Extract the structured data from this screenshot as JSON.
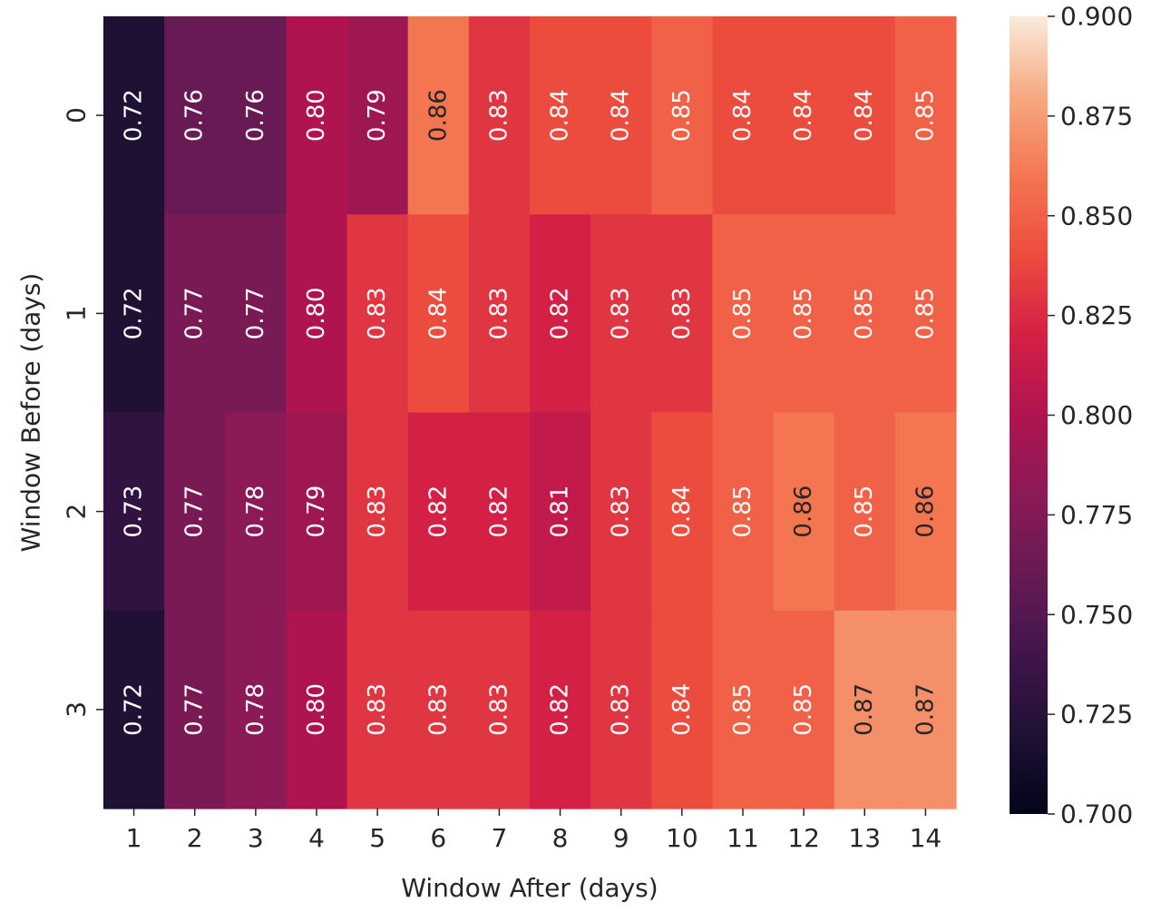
{
  "chart_data": {
    "type": "heatmap",
    "title": "",
    "xlabel": "Window After (days)",
    "ylabel": "Window Before (days)",
    "x_categories": [
      "1",
      "2",
      "3",
      "4",
      "5",
      "6",
      "7",
      "8",
      "9",
      "10",
      "11",
      "12",
      "13",
      "14"
    ],
    "y_categories": [
      "0",
      "1",
      "2",
      "3"
    ],
    "values": [
      [
        0.72,
        0.76,
        0.76,
        0.8,
        0.79,
        0.86,
        0.83,
        0.84,
        0.84,
        0.85,
        0.84,
        0.84,
        0.84,
        0.85
      ],
      [
        0.72,
        0.77,
        0.77,
        0.8,
        0.83,
        0.84,
        0.83,
        0.82,
        0.83,
        0.83,
        0.85,
        0.85,
        0.85,
        0.85
      ],
      [
        0.73,
        0.77,
        0.78,
        0.79,
        0.83,
        0.82,
        0.82,
        0.81,
        0.83,
        0.84,
        0.85,
        0.86,
        0.85,
        0.86
      ],
      [
        0.72,
        0.77,
        0.78,
        0.8,
        0.83,
        0.83,
        0.83,
        0.82,
        0.83,
        0.84,
        0.85,
        0.85,
        0.87,
        0.87
      ]
    ],
    "value_format": "2 decimals",
    "annotations": "on",
    "colormap": "rocket",
    "colorbar": {
      "range": [
        0.7,
        0.9
      ],
      "ticks": [
        "0.700",
        "0.725",
        "0.750",
        "0.775",
        "0.800",
        "0.825",
        "0.850",
        "0.875",
        "0.900"
      ]
    },
    "grid": false,
    "legend": "colorbar-right"
  }
}
